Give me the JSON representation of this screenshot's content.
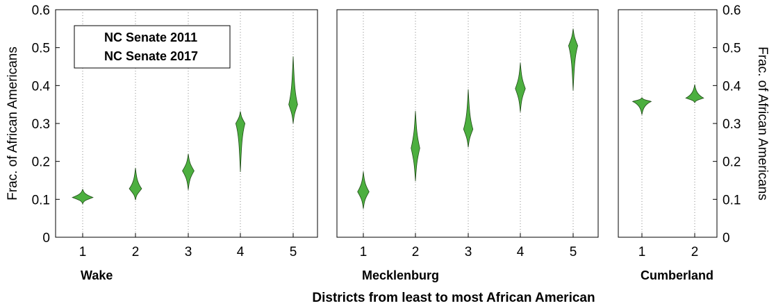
{
  "chart_data": {
    "type": "violin",
    "ylabel_left": "Frac. of African Americans",
    "ylabel_right": "Frac. of African Americans",
    "xlabel": "Districts from least to most African American",
    "ylim": [
      0,
      0.6
    ],
    "yticks": [
      "0",
      "0.1",
      "0.2",
      "0.3",
      "0.4",
      "0.5",
      "0.6"
    ],
    "grid": "vertical dotted",
    "legend": {
      "placement": "top-left",
      "entries": [
        "NC Senate 2011",
        "NC Senate 2017"
      ]
    },
    "colors": {
      "fill": "#4caf3f",
      "stroke": "#1f4a17"
    },
    "panels": [
      {
        "county": "Wake",
        "districts": [
          {
            "label": "1",
            "min": 0.088,
            "max": 0.127,
            "mode": 0.105
          },
          {
            "label": "2",
            "min": 0.098,
            "max": 0.183,
            "mode": 0.128
          },
          {
            "label": "3",
            "min": 0.125,
            "max": 0.22,
            "mode": 0.175
          },
          {
            "label": "4",
            "min": 0.172,
            "max": 0.332,
            "mode": 0.3
          },
          {
            "label": "5",
            "min": 0.3,
            "max": 0.477,
            "mode": 0.35
          }
        ]
      },
      {
        "county": "Mecklenburg",
        "districts": [
          {
            "label": "1",
            "min": 0.075,
            "max": 0.173,
            "mode": 0.12
          },
          {
            "label": "2",
            "min": 0.148,
            "max": 0.333,
            "mode": 0.235
          },
          {
            "label": "3",
            "min": 0.237,
            "max": 0.39,
            "mode": 0.285
          },
          {
            "label": "4",
            "min": 0.33,
            "max": 0.46,
            "mode": 0.392
          },
          {
            "label": "5",
            "min": 0.387,
            "max": 0.55,
            "mode": 0.505
          }
        ]
      },
      {
        "county": "Cumberland",
        "districts": [
          {
            "label": "1",
            "min": 0.323,
            "max": 0.368,
            "mode": 0.358
          },
          {
            "label": "2",
            "min": 0.355,
            "max": 0.403,
            "mode": 0.367
          }
        ]
      }
    ]
  }
}
